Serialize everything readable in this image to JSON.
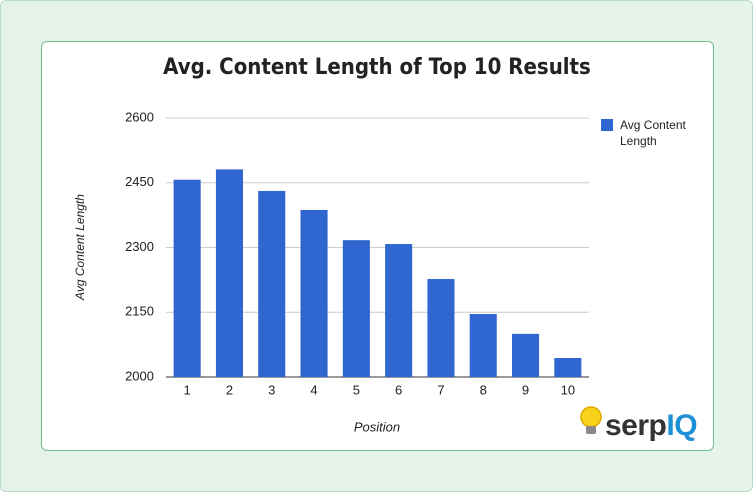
{
  "chart_data": {
    "type": "bar",
    "title": "Avg. Content Length of Top 10 Results",
    "x_label": "Position",
    "y_label": "Avg Content Length",
    "categories": [
      "1",
      "2",
      "3",
      "4",
      "5",
      "6",
      "7",
      "8",
      "9",
      "10"
    ],
    "series": [
      {
        "name": "Avg Content Length",
        "color": "#3066d0",
        "values": [
          2457,
          2481,
          2431,
          2387,
          2317,
          2308,
          2227,
          2146,
          2100,
          2044
        ]
      }
    ],
    "ylim": [
      2000,
      2600
    ],
    "yticks": [
      2000,
      2150,
      2300,
      2450,
      2600
    ],
    "grid": true,
    "legend": "right"
  },
  "logo": {
    "text": "serp",
    "highlight": "IQ"
  }
}
